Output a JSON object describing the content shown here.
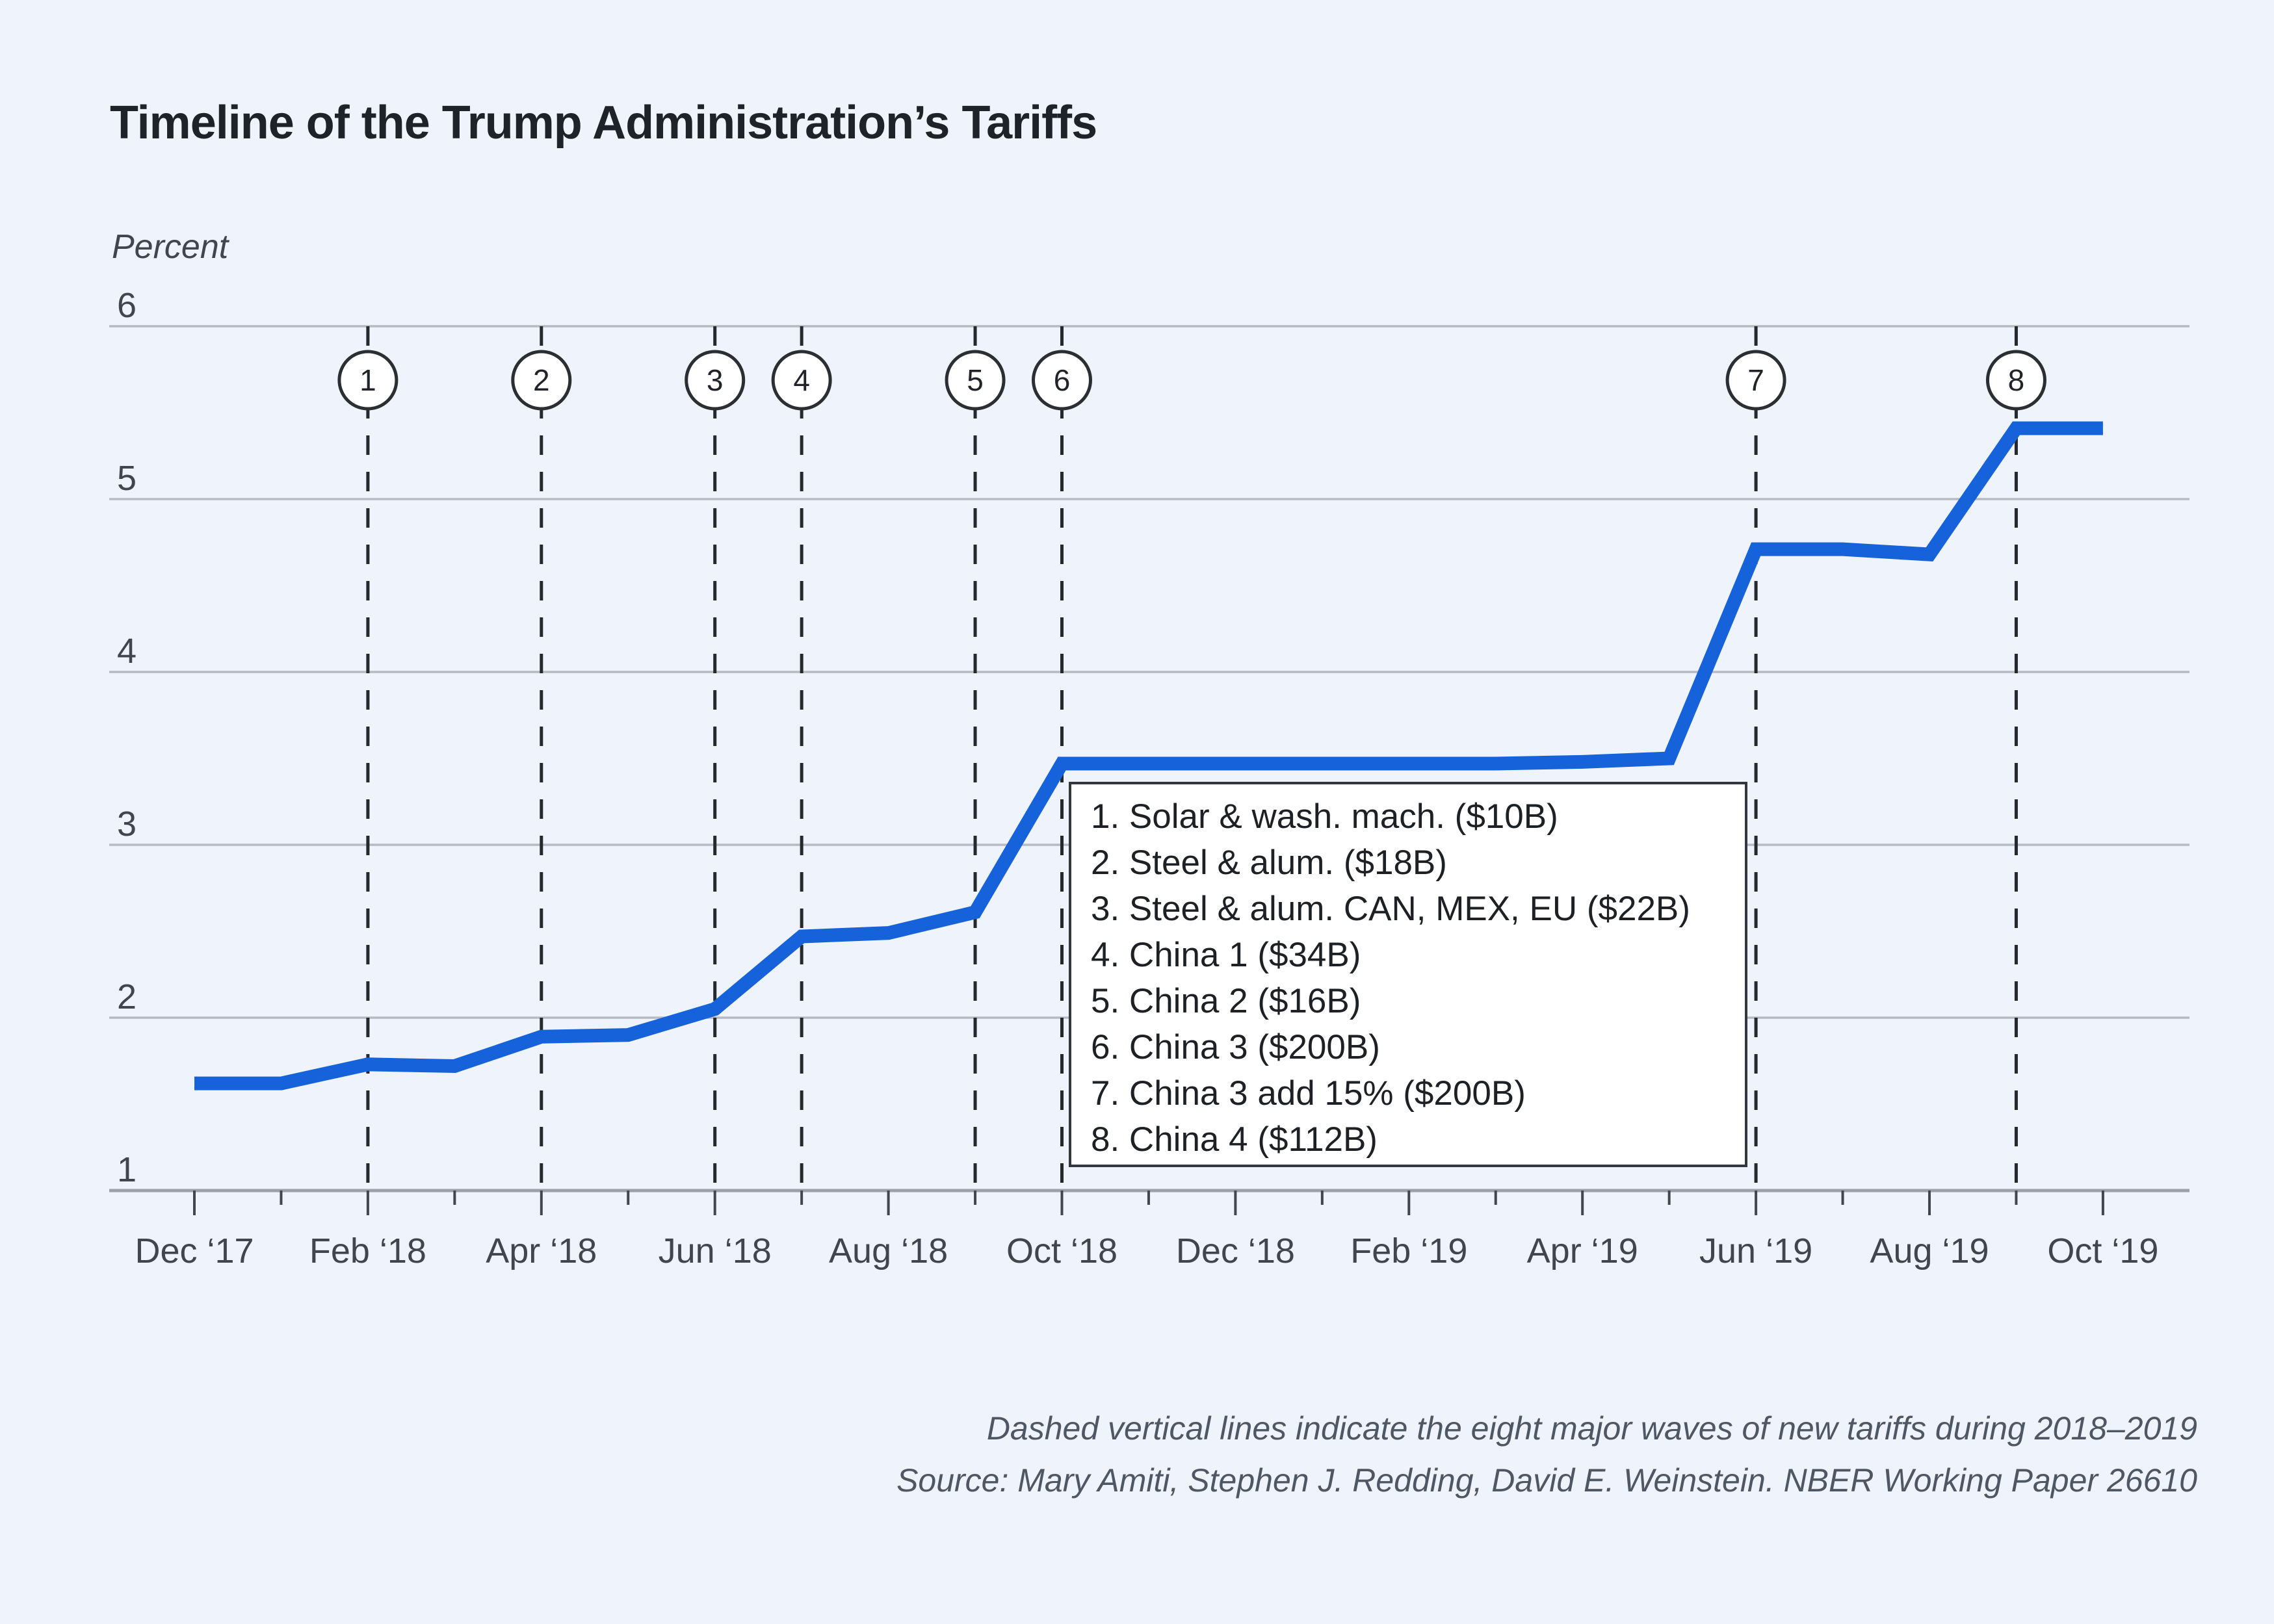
{
  "title": "Timeline of the Trump Administration’s Tariffs",
  "chart_data": {
    "type": "line",
    "title": "Timeline of the Trump Administration’s Tariffs",
    "ylabel": "Percent",
    "ylim": [
      1,
      6
    ],
    "y_ticks": [
      1,
      2,
      3,
      4,
      5,
      6
    ],
    "grid": true,
    "series_color": "#1562db",
    "x_months": [
      "Dec ‘17",
      "Jan ‘18",
      "Feb ‘18",
      "Mar ‘18",
      "Apr ‘18",
      "May ‘18",
      "Jun ‘18",
      "Jul ‘18",
      "Aug ‘18",
      "Sep ‘18",
      "Oct ‘18",
      "Nov ‘18",
      "Dec ‘18",
      "Jan ‘19",
      "Feb ‘19",
      "Mar ‘19",
      "Apr ‘19",
      "May ‘19",
      "Jun ‘19",
      "Jul ‘19",
      "Aug ‘19",
      "Sep ‘19",
      "Oct ‘19"
    ],
    "values": [
      1.62,
      1.62,
      1.73,
      1.72,
      1.89,
      1.9,
      2.05,
      2.47,
      2.49,
      2.61,
      3.47,
      3.47,
      3.47,
      3.47,
      3.47,
      3.47,
      3.48,
      3.5,
      4.71,
      4.71,
      4.68,
      5.41,
      5.41
    ],
    "x_tick_labels": [
      "Dec ‘17",
      "Feb ‘18",
      "Apr ‘18",
      "Jun ‘18",
      "Aug ‘18",
      "Oct ‘18",
      "Dec ‘18",
      "Feb ‘19",
      "Apr ‘19",
      "Jun ‘19",
      "Aug ‘19",
      "Oct ‘19"
    ],
    "events": [
      {
        "num": 1,
        "month": "Feb ‘18",
        "month_index": 2,
        "label": "Solar & wash. mach. ($10B)"
      },
      {
        "num": 2,
        "month": "Apr ‘18",
        "month_index": 4,
        "label": "Steel & alum. ($18B)"
      },
      {
        "num": 3,
        "month": "Jun ‘18",
        "month_index": 6,
        "label": "Steel & alum. CAN, MEX, EU ($22B)"
      },
      {
        "num": 4,
        "month": "Jul ‘18",
        "month_index": 7,
        "label": "China 1 ($34B)"
      },
      {
        "num": 5,
        "month": "Sep ‘18",
        "month_index": 9,
        "label": "China 2 ($16B)"
      },
      {
        "num": 6,
        "month": "Oct ‘18",
        "month_index": 10,
        "label": "China 3 ($200B)"
      },
      {
        "num": 7,
        "month": "Jun ‘19",
        "month_index": 18,
        "label": "China 3 add 15% ($200B)"
      },
      {
        "num": 8,
        "month": "Sep ‘19",
        "month_index": 21,
        "label": "China 4 ($112B)"
      }
    ],
    "legend_position": "inside-lower-middle"
  },
  "legend": {
    "items": [
      "1. Solar & wash. mach. ($10B)",
      "2. Steel & alum. ($18B)",
      "3. Steel & alum. CAN, MEX, EU ($22B)",
      "4. China 1 ($34B)",
      "5. China 2 ($16B)",
      "6. China 3 ($200B)",
      "7. China 3 add 15% ($200B)",
      "8. China 4 ($112B)"
    ]
  },
  "footer": {
    "note": "Dashed vertical lines indicate the eight major waves of new tariffs during 2018–2019",
    "source": "Source: Mary Amiti, Stephen J. Redding, David E. Weinstein. NBER Working Paper 26610"
  }
}
